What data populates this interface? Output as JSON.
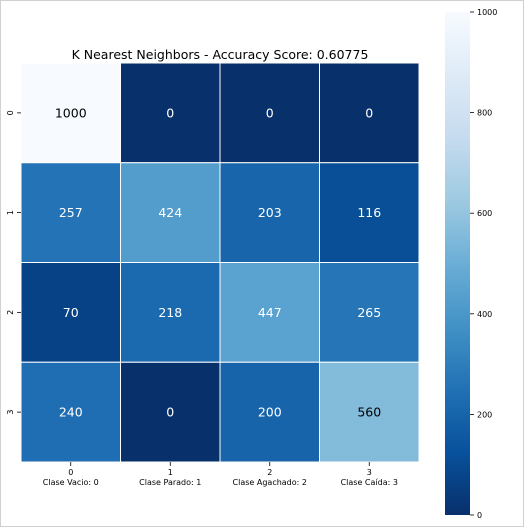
{
  "chart_data": {
    "type": "heatmap",
    "title": "K Nearest Neighbors - Accuracy Score: 0.60775",
    "row_labels": [
      "0",
      "1",
      "2",
      "3"
    ],
    "col_labels": [
      "0\nClase Vacio: 0",
      "1\nClase Parado: 1",
      "2\nClase Agachado: 2",
      "3\nClase Caída: 3"
    ],
    "values": [
      [
        1000,
        0,
        0,
        0
      ],
      [
        257,
        424,
        203,
        116
      ],
      [
        70,
        218,
        447,
        265
      ],
      [
        240,
        0,
        200,
        560
      ]
    ],
    "colorscale": "Blues",
    "vmin": 0,
    "vmax": 1000,
    "colorbar_ticks": [
      0,
      200,
      400,
      600,
      800,
      1000
    ],
    "cell_lines": "white"
  }
}
